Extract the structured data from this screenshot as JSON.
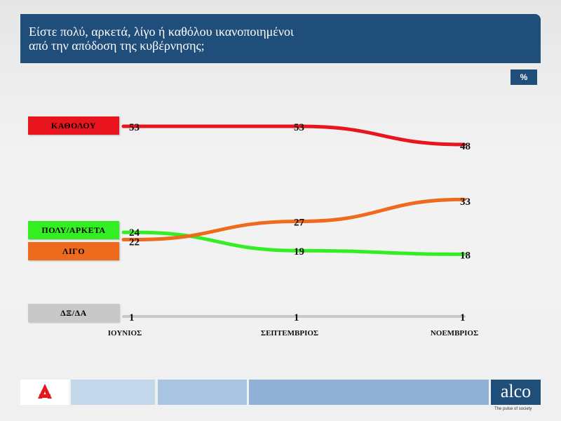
{
  "title_line1": "Είστε πολύ, αρκετά, λίγο ή καθόλου ικανοποιημένοι",
  "title_line2": "από την απόδοση της κυβέρνησης;",
  "unit": "%",
  "brand": {
    "name": "alco",
    "tagline": "The pulse of society",
    "logo_text": "ALPHA"
  },
  "colors": {
    "header": "#1f4e7a",
    "footer_light": "#c5d7ea",
    "footer_mid": "#a9c5e2",
    "footer_dark": "#8fb2d6"
  },
  "chart_data": {
    "type": "line",
    "categories": [
      "ΙΟΥΝΙΟΣ",
      "ΣΕΠΤΕΜΒΡΙΟΣ",
      "ΝΟΕΜΒΡΙΟΣ"
    ],
    "series": [
      {
        "name": "ΚΑΘΟΛΟΥ",
        "values": [
          53,
          53,
          48
        ],
        "color": "#e8141e"
      },
      {
        "name": "ΠΟΛΥ/ΑΡΚΕΤΑ",
        "values": [
          24,
          19,
          18
        ],
        "color": "#33ee22"
      },
      {
        "name": "ΛΙΓΟ",
        "values": [
          22,
          27,
          33
        ],
        "color": "#ee6a1c"
      },
      {
        "name": "ΔΞ/ΔΑ",
        "values": [
          1,
          1,
          1
        ],
        "color": "#c8c8c8"
      }
    ],
    "ylim": [
      0,
      60
    ],
    "grid": false,
    "legend": "left"
  }
}
